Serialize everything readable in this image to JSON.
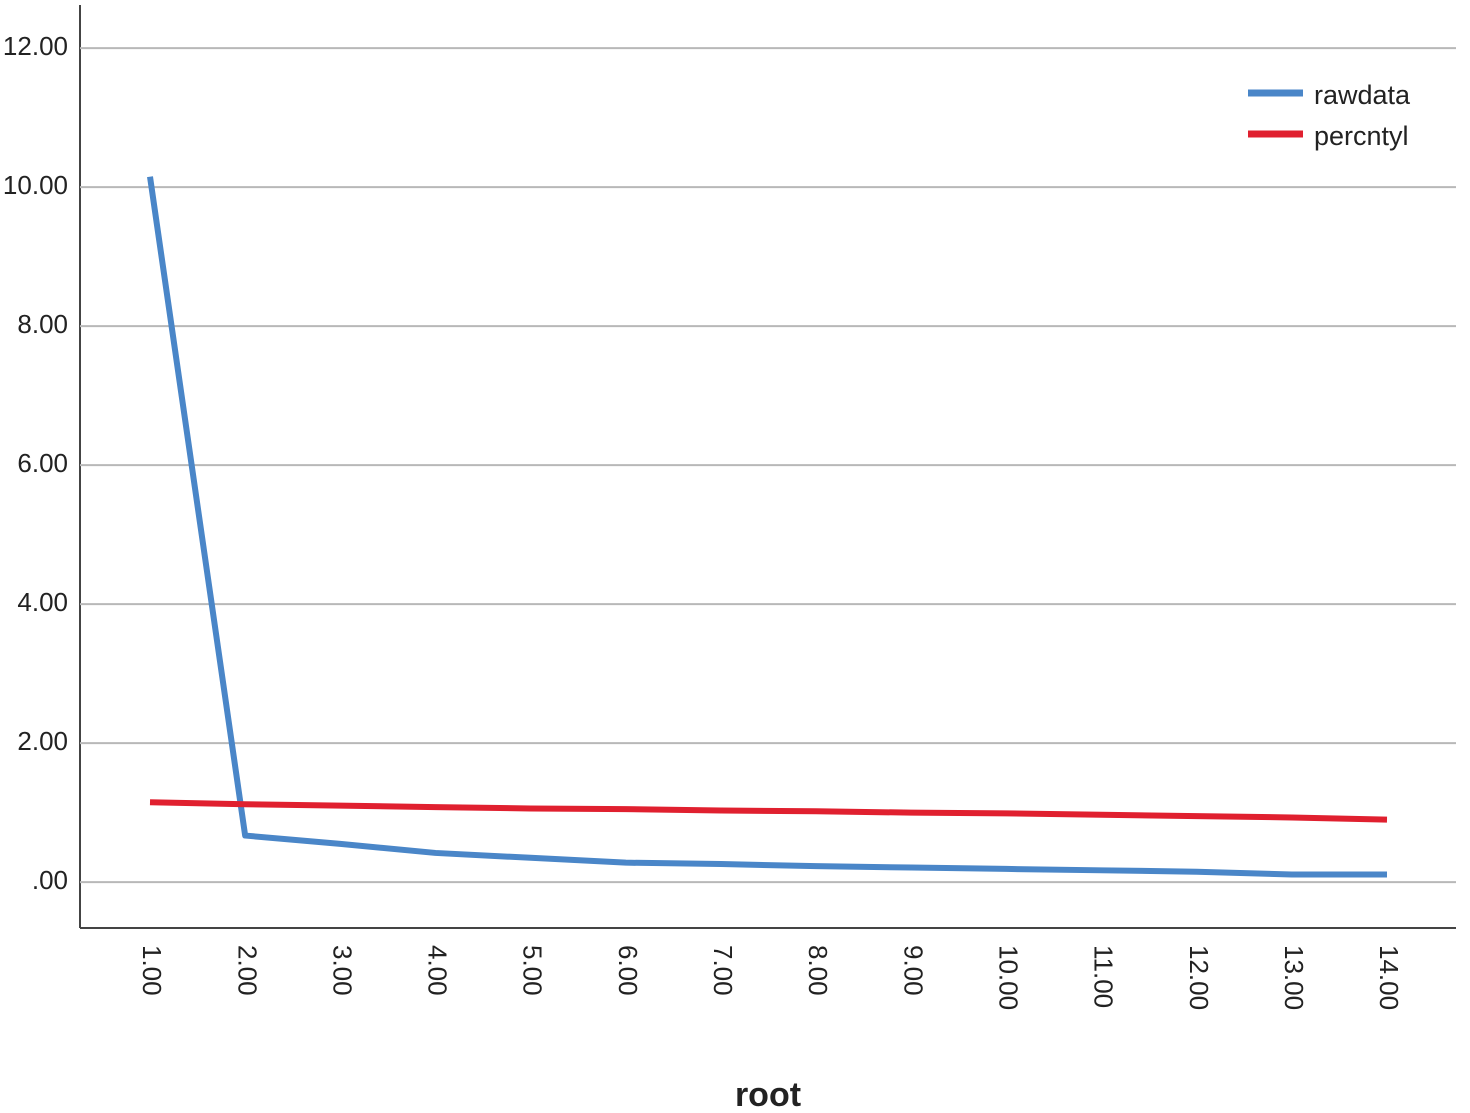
{
  "chart_data": {
    "type": "line",
    "x_label": "root",
    "categories": [
      "1.00",
      "2.00",
      "3.00",
      "4.00",
      "5.00",
      "6.00",
      "7.00",
      "8.00",
      "9.00",
      "10.00",
      "11.00",
      "12.00",
      "13.00",
      "14.00"
    ],
    "series": [
      {
        "name": "rawdata",
        "color": "#4a86c8",
        "values": [
          10.15,
          0.67,
          0.55,
          0.42,
          0.35,
          0.28,
          0.26,
          0.23,
          0.21,
          0.19,
          0.17,
          0.15,
          0.11,
          0.11
        ]
      },
      {
        "name": "percntyl",
        "color": "#e0202f",
        "values": [
          1.15,
          1.12,
          1.1,
          1.08,
          1.06,
          1.05,
          1.03,
          1.02,
          1.0,
          0.99,
          0.97,
          0.95,
          0.93,
          0.9
        ]
      }
    ],
    "ylim": [
      -0.66,
      12.62
    ],
    "yticks": [
      {
        "value": 0,
        "label": ".00"
      },
      {
        "value": 2,
        "label": "2.00"
      },
      {
        "value": 4,
        "label": "4.00"
      },
      {
        "value": 6,
        "label": "6.00"
      },
      {
        "value": 8,
        "label": "8.00"
      },
      {
        "value": 10,
        "label": "10.00"
      },
      {
        "value": 12,
        "label": "12.00"
      }
    ],
    "grid": true,
    "legend": "top-right"
  }
}
